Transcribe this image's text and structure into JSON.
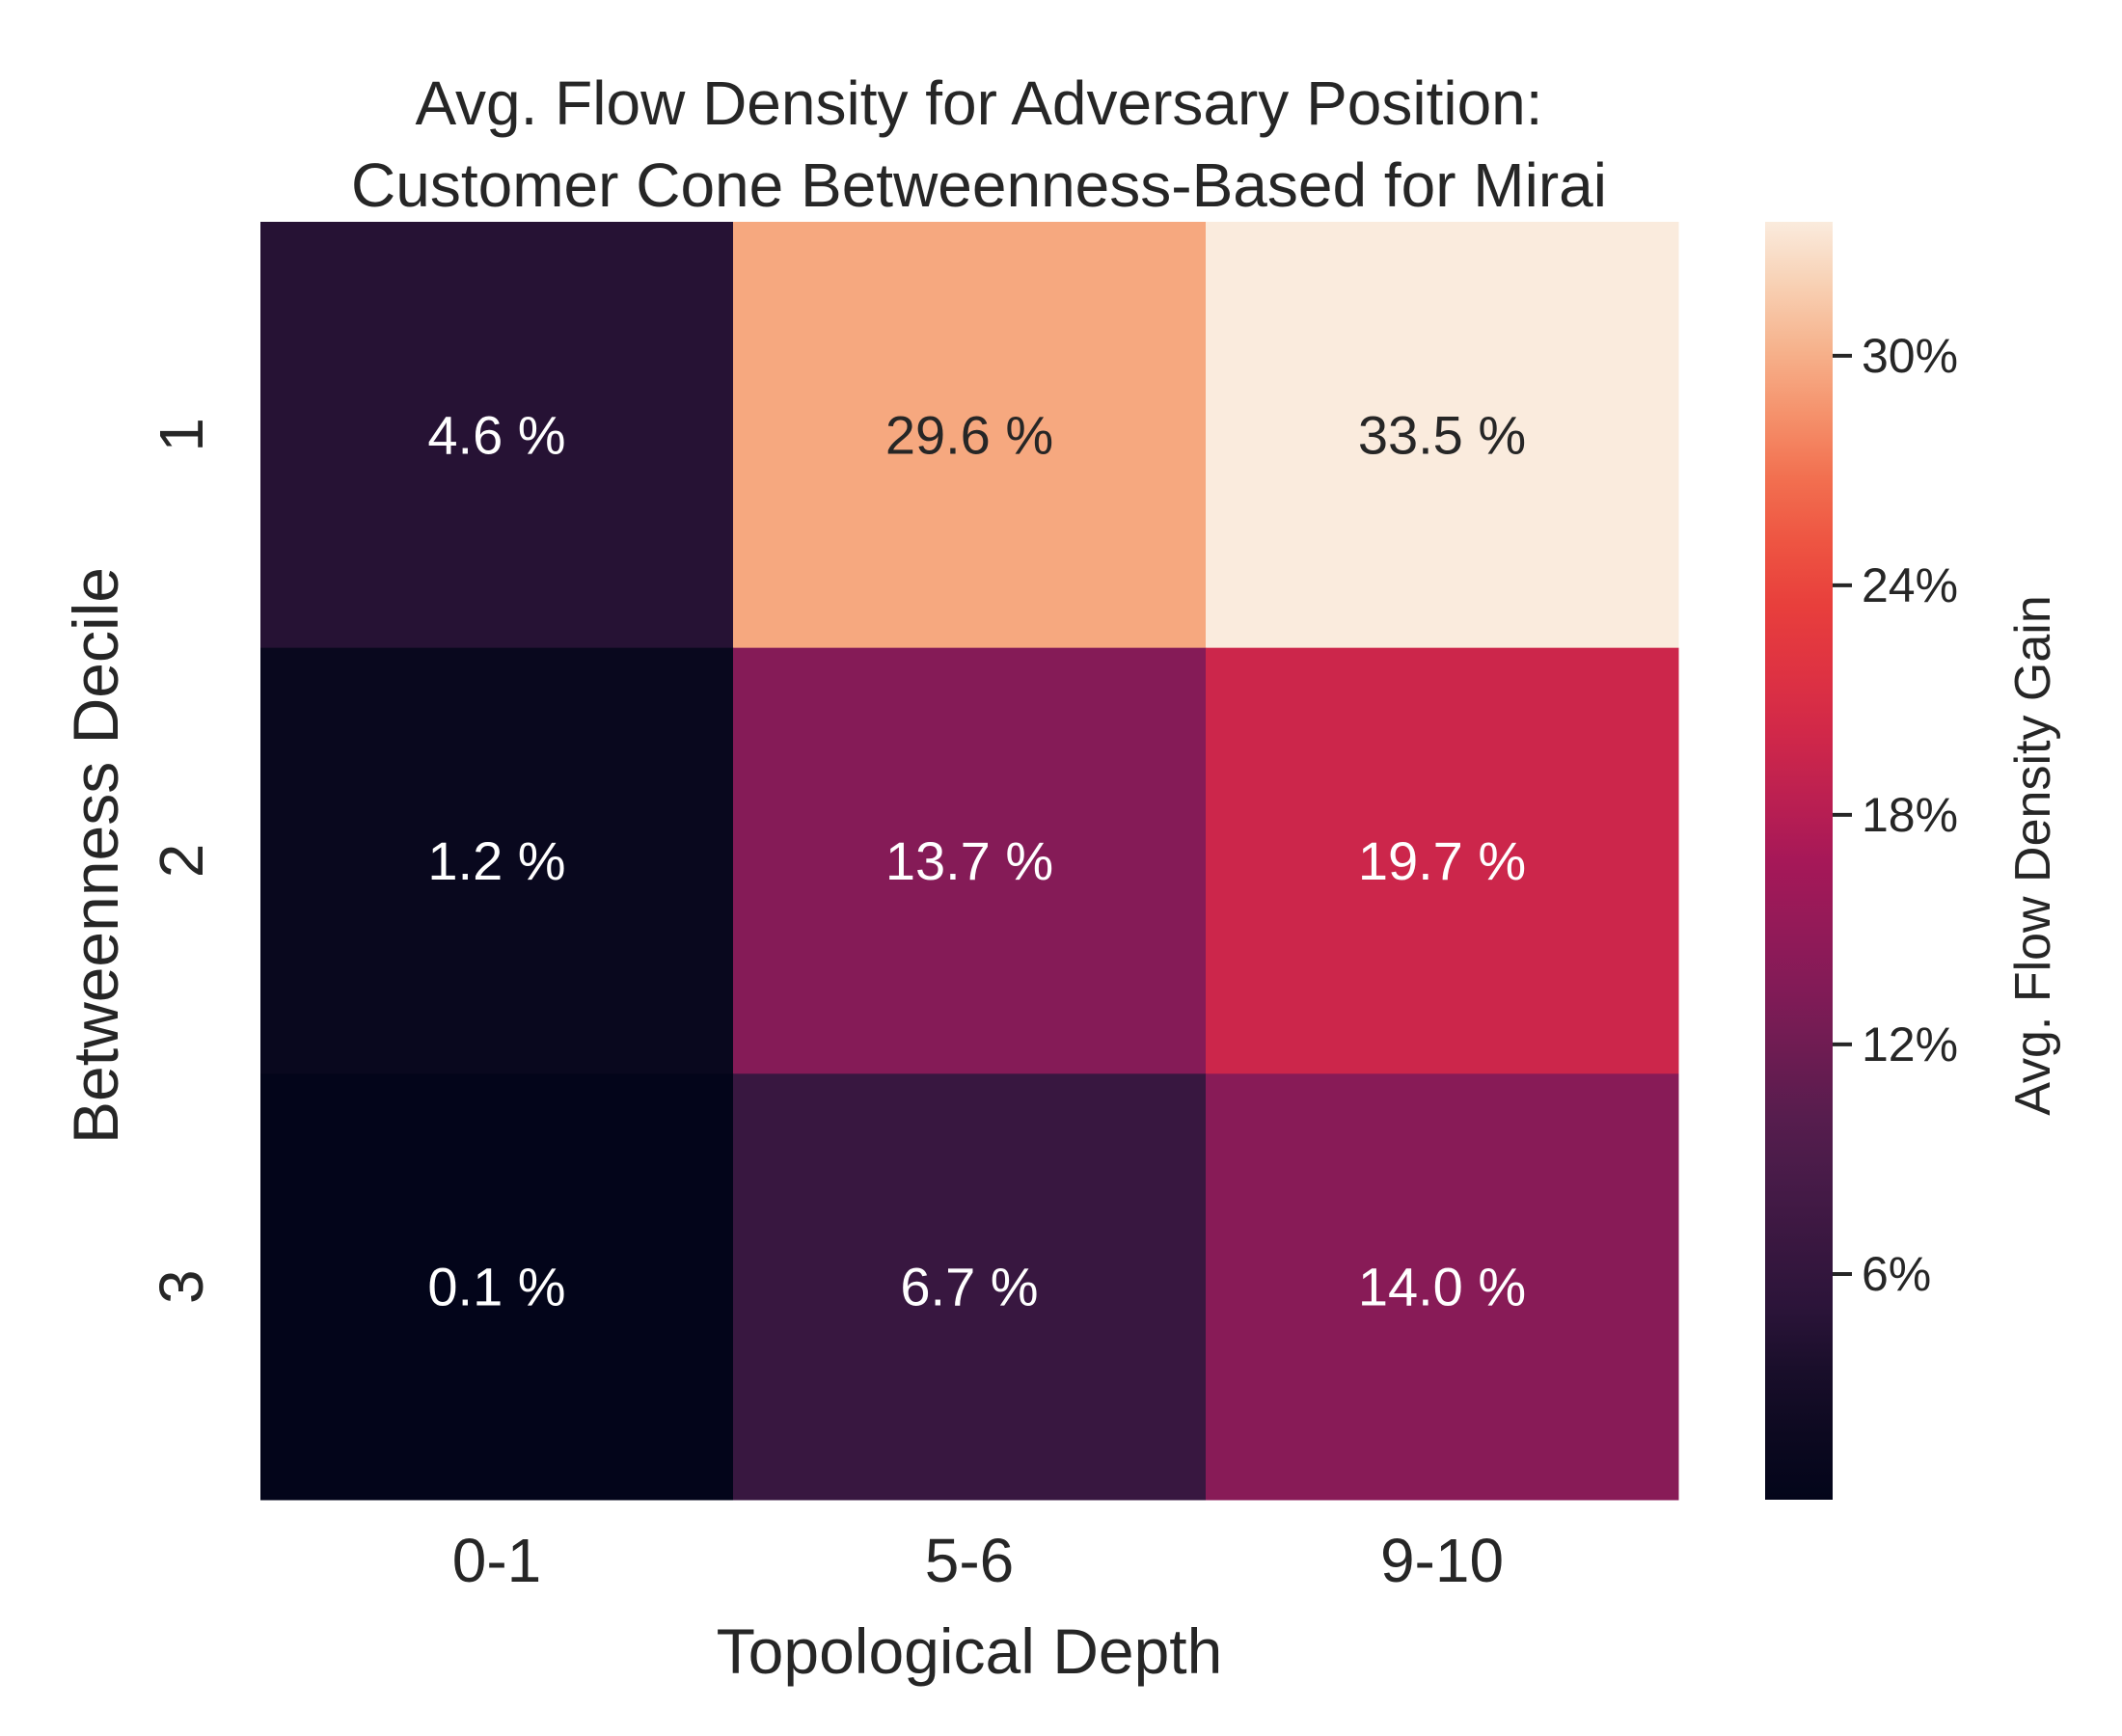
{
  "chart_data": {
    "type": "heatmap",
    "title_lines": [
      "Avg. Flow Density for Adversary Position:",
      "Customer Cone Betweenness-Based for Mirai"
    ],
    "xlabel": "Topological Depth",
    "ylabel": "Betweenness Decile",
    "x_categories": [
      "0-1",
      "5-6",
      "9-10"
    ],
    "y_categories": [
      "1",
      "2",
      "3"
    ],
    "values": [
      [
        4.6,
        29.6,
        33.5
      ],
      [
        1.2,
        13.7,
        19.7
      ],
      [
        0.1,
        6.7,
        14.0
      ]
    ],
    "cell_labels": [
      [
        "4.6 %",
        "29.6 %",
        "33.5 %"
      ],
      [
        "1.2 %",
        "13.7 %",
        "19.7 %"
      ],
      [
        "0.1 %",
        "6.7 %",
        "14.0 %"
      ]
    ],
    "colorbar": {
      "label": "Avg. Flow Density Gain",
      "range": [
        0.1,
        33.5
      ],
      "ticks": [
        6,
        12,
        18,
        24,
        30
      ],
      "tick_labels": [
        "6%",
        "12%",
        "18%",
        "24%",
        "30%"
      ],
      "colormap": "rocket"
    }
  }
}
